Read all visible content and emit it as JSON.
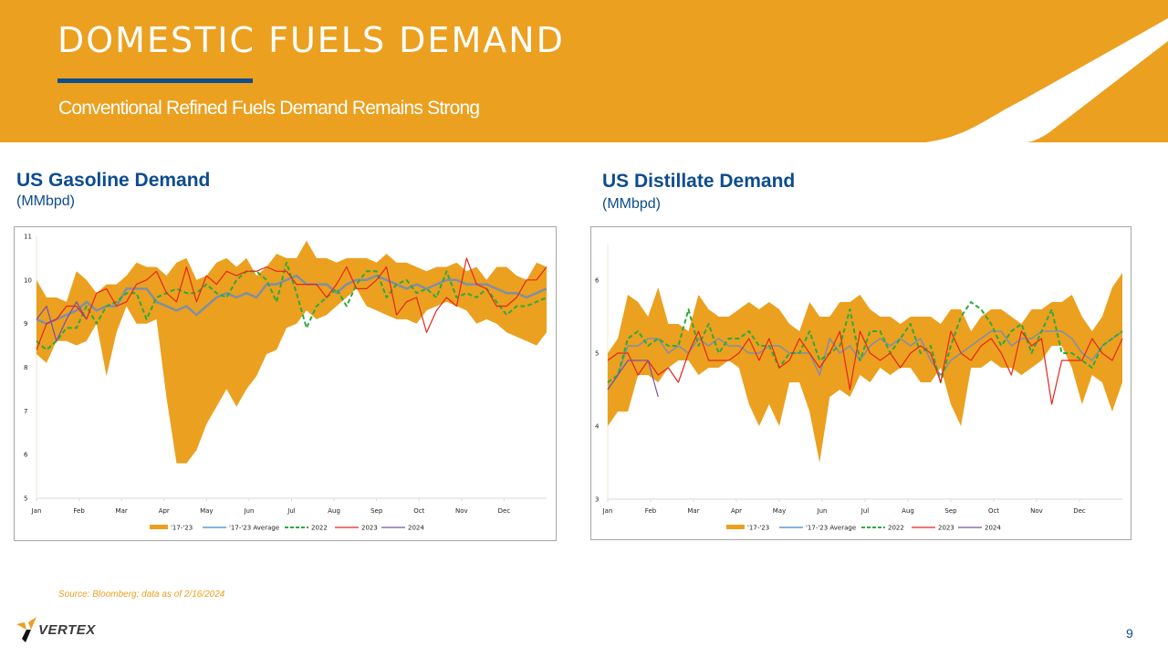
{
  "slide": {
    "title": "DOMESTIC FUELS DEMAND",
    "subtitle": "Conventional Refined Fuels Demand Remains Strong",
    "source": "Source: Bloomberg; data as of 2/16/2024",
    "logo_text": "VERTEX",
    "page_number": "9",
    "colors": {
      "banner": "#EBA01F",
      "accent_blue": "#0D4C8F",
      "range": "#EBA01F",
      "average": "#7f8fa6",
      "y2022": "#2EAA3C",
      "y2023": "#E8251B",
      "y2024": "#7B4FA8"
    }
  },
  "gasoline": {
    "title": "US Gasoline Demand",
    "unit": "(MMbpd)"
  },
  "distillate": {
    "title": "US Distillate Demand",
    "unit": "(MMbpd)"
  },
  "chart_data": [
    {
      "type": "area",
      "title": "US Gasoline Demand",
      "ylabel": "MMbpd",
      "ylim": [
        5,
        11
      ],
      "yticks": [
        "5",
        "6",
        "7",
        "8",
        "9",
        "10",
        "11"
      ],
      "xticks": [
        "Jan",
        "Feb",
        "Mar",
        "Apr",
        "May",
        "Jun",
        "Jul",
        "Aug",
        "Sep",
        "Oct",
        "Nov",
        "Dec"
      ],
      "weeks": 52,
      "legend": [
        "'17-'23",
        "'17-'23 Average",
        "2022",
        "2023",
        "2024"
      ],
      "legend_position": "bottom",
      "series": [
        {
          "name": "'17-'23 max",
          "values": [
            10.0,
            9.6,
            9.6,
            9.5,
            10.2,
            10.0,
            9.7,
            9.9,
            9.9,
            10.1,
            10.4,
            10.3,
            10.3,
            10.1,
            10.4,
            10.5,
            10.0,
            10.1,
            10.4,
            10.5,
            10.3,
            10.5,
            10.1,
            10.3,
            10.6,
            10.5,
            10.5,
            10.9,
            10.5,
            10.5,
            10.4,
            10.5,
            10.5,
            10.5,
            10.4,
            10.6,
            10.4,
            10.4,
            10.3,
            10.2,
            10.3,
            10.3,
            10.4,
            10.2,
            10.3,
            10.0,
            10.3,
            10.3,
            10.1,
            10.0,
            10.4,
            10.3
          ]
        },
        {
          "name": "'17-'23 min",
          "values": [
            8.3,
            8.1,
            8.6,
            8.6,
            8.5,
            8.6,
            9.0,
            7.8,
            8.8,
            9.4,
            9.0,
            9.0,
            9.1,
            7.3,
            5.8,
            5.8,
            6.1,
            6.7,
            7.1,
            7.5,
            7.1,
            7.5,
            7.8,
            8.3,
            8.4,
            8.9,
            9.0,
            9.3,
            9.1,
            9.2,
            9.4,
            9.6,
            9.8,
            9.4,
            9.3,
            9.2,
            9.1,
            9.1,
            9.0,
            9.3,
            9.4,
            9.5,
            9.4,
            9.3,
            9.0,
            9.1,
            9.0,
            8.8,
            8.7,
            8.6,
            8.5,
            8.8
          ]
        },
        {
          "name": "'17-'23 Average",
          "values": [
            9.1,
            9.0,
            9.1,
            9.2,
            9.3,
            9.5,
            9.3,
            9.4,
            9.4,
            9.8,
            9.8,
            9.8,
            9.5,
            9.4,
            9.3,
            9.4,
            9.2,
            9.4,
            9.6,
            9.7,
            9.6,
            9.7,
            9.6,
            9.9,
            9.9,
            10.0,
            10.1,
            9.9,
            9.9,
            9.9,
            9.7,
            9.9,
            10.0,
            10.0,
            10.1,
            10.0,
            9.9,
            9.8,
            9.9,
            9.8,
            9.9,
            10.0,
            10.0,
            9.9,
            9.9,
            9.9,
            9.8,
            9.7,
            9.7,
            9.6,
            9.7,
            9.8
          ]
        },
        {
          "name": "2022",
          "values": [
            8.6,
            8.4,
            8.6,
            8.9,
            8.9,
            9.4,
            9.0,
            9.4,
            9.5,
            9.7,
            9.7,
            9.1,
            9.6,
            9.7,
            9.8,
            9.7,
            9.7,
            9.9,
            9.7,
            9.6,
            10.0,
            10.2,
            10.2,
            10.0,
            9.5,
            10.4,
            9.7,
            8.9,
            9.4,
            9.6,
            9.8,
            9.4,
            9.9,
            10.2,
            10.2,
            9.6,
            9.9,
            10.0,
            9.7,
            9.8,
            9.6,
            10.2,
            9.6,
            9.7,
            9.6,
            9.8,
            9.5,
            9.2,
            9.4,
            9.4,
            9.5,
            9.6
          ]
        },
        {
          "name": "2023",
          "values": [
            8.4,
            9.0,
            9.1,
            9.4,
            9.4,
            9.1,
            9.7,
            9.8,
            9.4,
            9.5,
            9.9,
            10.0,
            10.2,
            9.7,
            9.5,
            10.3,
            9.5,
            10.1,
            9.9,
            10.2,
            10.1,
            10.2,
            10.2,
            10.3,
            10.2,
            10.2,
            9.9,
            9.9,
            9.9,
            9.6,
            9.9,
            10.3,
            9.8,
            9.8,
            10.0,
            10.3,
            9.2,
            9.5,
            9.6,
            8.8,
            9.3,
            9.6,
            9.4,
            10.5,
            9.9,
            9.8,
            9.4,
            9.4,
            9.6,
            10.0,
            10.0,
            10.3
          ]
        },
        {
          "name": "2024",
          "values": [
            9.1,
            9.4,
            8.6,
            9.1,
            9.5,
            9.1
          ]
        }
      ]
    },
    {
      "type": "area",
      "title": "US Distillate Demand",
      "ylabel": "MMbpd",
      "ylim": [
        3,
        6.5
      ],
      "yticks": [
        "3",
        "4",
        "5",
        "6"
      ],
      "xticks": [
        "Jan",
        "Feb",
        "Mar",
        "Apr",
        "May",
        "Jun",
        "Jul",
        "Aug",
        "Sep",
        "Oct",
        "Nov",
        "Dec"
      ],
      "weeks": 52,
      "legend": [
        "'17-'23",
        "'17-'23 Average",
        "2022",
        "2023",
        "2024"
      ],
      "legend_position": "bottom",
      "series": [
        {
          "name": "'17-'23 max",
          "values": [
            5.0,
            5.2,
            5.8,
            5.7,
            5.5,
            5.9,
            5.4,
            5.4,
            5.3,
            5.8,
            5.6,
            5.5,
            5.5,
            5.6,
            5.7,
            5.6,
            5.7,
            5.6,
            5.4,
            5.3,
            5.7,
            5.5,
            5.5,
            5.7,
            5.7,
            5.8,
            5.6,
            5.5,
            5.5,
            5.4,
            5.5,
            5.5,
            5.5,
            5.4,
            5.6,
            5.6,
            5.3,
            5.5,
            5.6,
            5.6,
            5.5,
            5.4,
            5.6,
            5.6,
            5.7,
            5.7,
            5.8,
            5.5,
            5.3,
            5.5,
            5.9,
            6.1
          ]
        },
        {
          "name": "'17-'23 min",
          "values": [
            4.0,
            4.2,
            4.2,
            4.7,
            4.7,
            4.6,
            4.8,
            4.9,
            4.9,
            4.7,
            4.8,
            4.8,
            4.9,
            4.8,
            4.3,
            4.0,
            4.3,
            4.0,
            4.6,
            4.6,
            4.2,
            3.5,
            4.4,
            4.5,
            4.4,
            4.7,
            4.6,
            4.8,
            4.7,
            4.8,
            4.8,
            4.6,
            4.6,
            4.8,
            4.3,
            4.0,
            4.8,
            4.8,
            4.9,
            4.8,
            4.8,
            4.7,
            4.8,
            4.9,
            5.1,
            5.1,
            4.8,
            4.3,
            4.7,
            4.6,
            4.2,
            4.6
          ]
        },
        {
          "name": "'17-'23 Average",
          "values": [
            4.5,
            4.7,
            5.1,
            5.1,
            5.2,
            5.2,
            5.0,
            5.1,
            5.0,
            5.2,
            5.1,
            5.2,
            5.1,
            5.1,
            5.0,
            5.0,
            5.1,
            5.1,
            5.0,
            5.0,
            5.0,
            4.7,
            5.2,
            5.0,
            5.1,
            4.9,
            5.1,
            5.2,
            5.1,
            5.2,
            5.1,
            5.2,
            4.9,
            4.7,
            4.9,
            5.0,
            5.1,
            5.2,
            5.3,
            5.3,
            5.1,
            5.2,
            5.2,
            5.3,
            5.3,
            5.3,
            5.2,
            5.0,
            4.9,
            5.1,
            5.2,
            5.3
          ]
        },
        {
          "name": "2022",
          "values": [
            4.6,
            4.7,
            5.2,
            5.3,
            5.1,
            5.2,
            5.1,
            5.1,
            5.6,
            5.1,
            5.4,
            5.0,
            5.2,
            5.2,
            5.3,
            5.1,
            5.1,
            4.8,
            5.0,
            5.0,
            5.3,
            4.9,
            5.0,
            5.1,
            5.6,
            4.9,
            5.3,
            5.3,
            5.0,
            5.2,
            5.4,
            5.0,
            5.1,
            4.6,
            5.1,
            5.5,
            5.7,
            5.6,
            5.4,
            5.1,
            5.3,
            5.4,
            5.0,
            5.3,
            5.6,
            5.0,
            5.0,
            4.9,
            4.8,
            5.1,
            5.2,
            5.3
          ]
        },
        {
          "name": "2023",
          "values": [
            4.9,
            5.0,
            5.0,
            4.7,
            4.9,
            4.7,
            4.8,
            4.6,
            5.0,
            5.3,
            4.9,
            4.9,
            4.9,
            5.0,
            5.2,
            4.9,
            5.2,
            4.8,
            4.9,
            5.2,
            5.0,
            4.8,
            5.0,
            5.3,
            4.5,
            5.3,
            5.0,
            4.9,
            5.0,
            4.8,
            5.0,
            5.1,
            5.0,
            4.6,
            5.3,
            5.0,
            4.9,
            5.1,
            5.2,
            5.0,
            4.7,
            5.3,
            5.1,
            5.2,
            4.3,
            4.9,
            4.9,
            4.9,
            5.2,
            5.0,
            4.9,
            5.2
          ]
        },
        {
          "name": "2024",
          "values": [
            4.5,
            4.7,
            4.9,
            4.9,
            4.9,
            4.4
          ]
        }
      ]
    }
  ]
}
